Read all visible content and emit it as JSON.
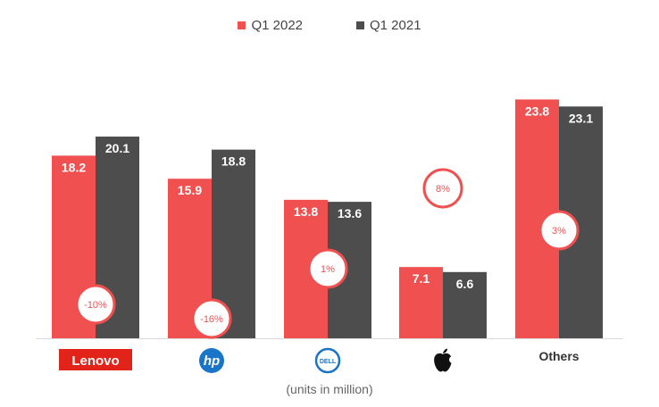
{
  "legend": [
    {
      "label": "Q1 2022",
      "color": "#f05050"
    },
    {
      "label": "Q1 2021",
      "color": "#4d4d4d"
    }
  ],
  "footnote": "(units in million)",
  "chart_data": {
    "type": "bar",
    "categories": [
      "Lenovo",
      "hp",
      "DELL",
      "Apple",
      "Others"
    ],
    "series": [
      {
        "name": "Q1 2022",
        "values": [
          18.2,
          15.9,
          13.8,
          7.1,
          23.8
        ],
        "color": "#f05050"
      },
      {
        "name": "Q1 2021",
        "values": [
          20.1,
          18.8,
          13.6,
          6.6,
          23.1
        ],
        "color": "#4d4d4d"
      }
    ],
    "growth_labels": [
      "-10%",
      "-16%",
      "1%",
      "8%",
      "3%"
    ],
    "category_display": [
      "lenovo-logo",
      "hp-logo",
      "dell-logo",
      "apple-logo",
      "text"
    ],
    "ylim": [
      0,
      25
    ],
    "grid": false,
    "legend_position": "top-center",
    "title": "",
    "xlabel": "",
    "ylabel": ""
  }
}
